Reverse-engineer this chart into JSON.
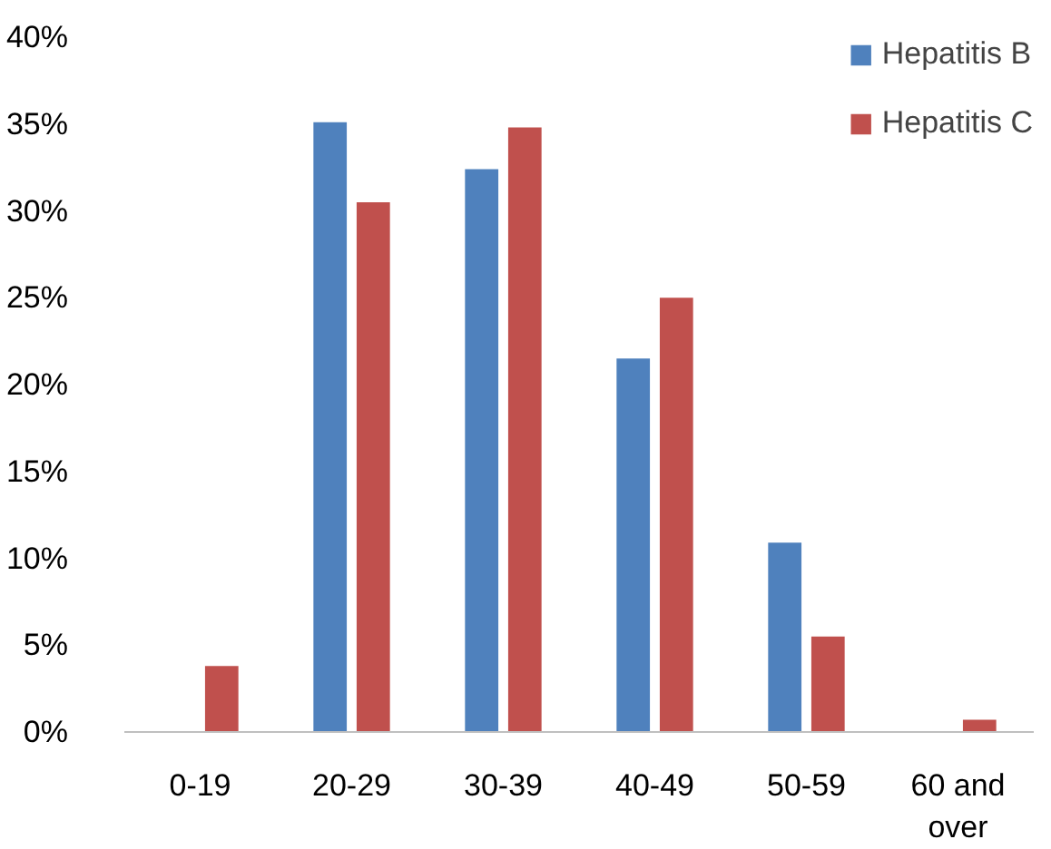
{
  "chart_data": {
    "type": "bar",
    "categories": [
      "0-19",
      "20-29",
      "30-39",
      "40-49",
      "50-59",
      "60 and over"
    ],
    "series": [
      {
        "name": "Hepatitis B",
        "color": "#4f81bd",
        "values": [
          0,
          35.1,
          32.4,
          21.5,
          10.9,
          0
        ]
      },
      {
        "name": "Hepatitis C",
        "color": "#c0504d",
        "values": [
          3.8,
          30.5,
          34.8,
          25.0,
          5.5,
          0.7
        ]
      }
    ],
    "ylim": [
      0,
      40
    ],
    "yticks": [
      {
        "value": 0,
        "label": "0%"
      },
      {
        "value": 5,
        "label": "5%"
      },
      {
        "value": 10,
        "label": "10%"
      },
      {
        "value": 15,
        "label": "15%"
      },
      {
        "value": 20,
        "label": "20%"
      },
      {
        "value": 25,
        "label": "25%"
      },
      {
        "value": 30,
        "label": "30%"
      },
      {
        "value": 35,
        "label": "35%"
      },
      {
        "value": 40,
        "label": "40%"
      }
    ],
    "grid": false,
    "legend": "top right"
  }
}
